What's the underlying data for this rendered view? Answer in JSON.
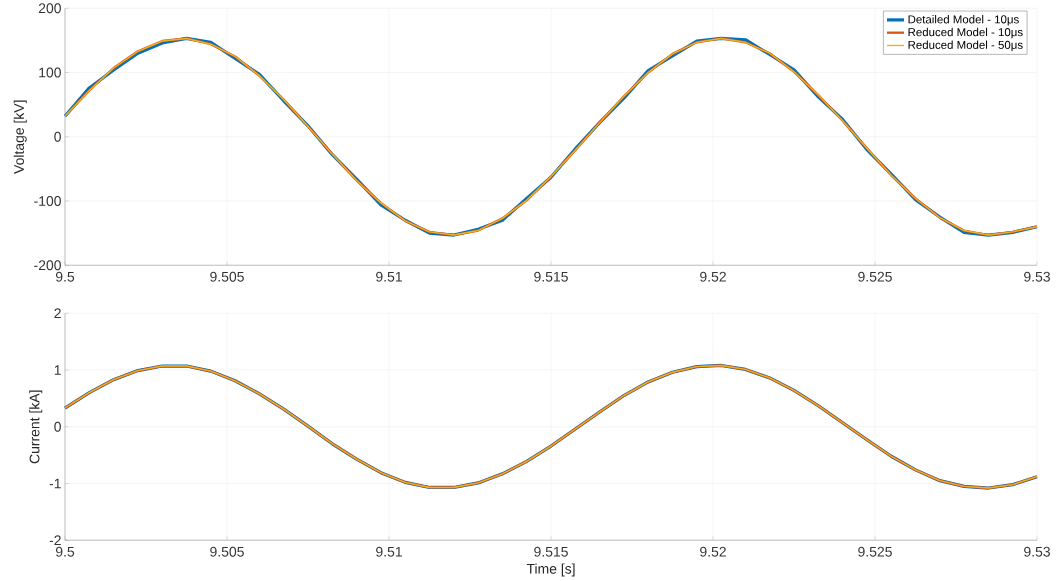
{
  "chart_data": [
    {
      "type": "line",
      "ylabel": "Voltage [kV]",
      "x": [
        9.5,
        9.50075,
        9.5015,
        9.50225,
        9.503,
        9.50375,
        9.5045,
        9.50525,
        9.506,
        9.50675,
        9.5075,
        9.50825,
        9.509,
        9.50975,
        9.5105,
        9.51125,
        9.512,
        9.51275,
        9.5135,
        9.51425,
        9.515,
        9.51575,
        9.5165,
        9.51725,
        9.518,
        9.51875,
        9.5195,
        9.52025,
        9.521,
        9.52175,
        9.5225,
        9.52325,
        9.524,
        9.52475,
        9.5255,
        9.52625,
        9.527,
        9.52775,
        9.5285,
        9.52925,
        9.53
      ],
      "series": [
        {
          "name": "Detailed Model - 10μs",
          "color": "#0072bd",
          "values": [
            32,
            76,
            104,
            130,
            146,
            153,
            147,
            122,
            97,
            56,
            17,
            -28,
            -66,
            -106,
            -130,
            -150,
            -153,
            -144,
            -130,
            -96,
            -63,
            -19,
            22,
            60,
            103,
            126,
            149,
            153,
            151,
            128,
            104,
            62,
            27,
            -20,
            -58,
            -98,
            -125,
            -149,
            -153,
            -149,
            -140
          ]
        },
        {
          "name": "Reduced Model - 10μs",
          "color": "#d95319",
          "values": [
            32,
            72,
            107,
            133,
            149,
            153,
            144,
            125,
            95,
            58,
            16,
            -27,
            -68,
            -103,
            -131,
            -148,
            -153,
            -146,
            -127,
            -99,
            -62,
            -21,
            22,
            63,
            100,
            129,
            147,
            153,
            147,
            130,
            101,
            65,
            25,
            -18,
            -60,
            -96,
            -126,
            -146,
            -153,
            -148,
            -140
          ]
        },
        {
          "name": "Reduced Model - 50μs",
          "color": "#edb120",
          "values": [
            32,
            72,
            107,
            133,
            149,
            153,
            144,
            125,
            95,
            58,
            16,
            -27,
            -68,
            -103,
            -131,
            -148,
            -153,
            -146,
            -127,
            -99,
            -62,
            -21,
            22,
            63,
            100,
            129,
            147,
            153,
            147,
            130,
            101,
            65,
            25,
            -18,
            -60,
            -96,
            -126,
            -146,
            -153,
            -148,
            -140
          ]
        }
      ],
      "xlim": [
        9.5,
        9.53
      ],
      "ylim": [
        -200,
        200
      ],
      "xticks": [
        9.5,
        9.505,
        9.51,
        9.515,
        9.52,
        9.525,
        9.53
      ],
      "yticks": [
        -200,
        -100,
        0,
        100,
        200
      ],
      "grid": true,
      "legend": "top right"
    },
    {
      "type": "line",
      "xlabel": "Time [s]",
      "ylabel": "Current [kA]",
      "x": [
        9.5,
        9.50075,
        9.5015,
        9.50225,
        9.503,
        9.50375,
        9.5045,
        9.50525,
        9.506,
        9.50675,
        9.5075,
        9.50825,
        9.509,
        9.50975,
        9.5105,
        9.51125,
        9.512,
        9.51275,
        9.5135,
        9.51425,
        9.515,
        9.51575,
        9.5165,
        9.51725,
        9.518,
        9.51875,
        9.5195,
        9.52025,
        9.521,
        9.52175,
        9.5225,
        9.52325,
        9.524,
        9.52475,
        9.5255,
        9.52625,
        9.527,
        9.52775,
        9.5285,
        9.52925,
        9.53
      ],
      "series": [
        {
          "color": "#0072bd",
          "values": [
            0.33,
            0.6,
            0.83,
            0.99,
            1.07,
            1.07,
            0.98,
            0.81,
            0.58,
            0.31,
            0.01,
            -0.3,
            -0.57,
            -0.81,
            -0.98,
            -1.07,
            -1.07,
            -0.99,
            -0.83,
            -0.61,
            -0.34,
            -0.04,
            0.26,
            0.55,
            0.79,
            0.96,
            1.06,
            1.08,
            1.01,
            0.86,
            0.64,
            0.37,
            0.07,
            -0.23,
            -0.52,
            -0.76,
            -0.95,
            -1.05,
            -1.08,
            -1.02,
            -0.88
          ]
        },
        {
          "color": "#d95319",
          "values": [
            0.33,
            0.6,
            0.83,
            0.99,
            1.07,
            1.07,
            0.98,
            0.81,
            0.58,
            0.31,
            0.01,
            -0.3,
            -0.57,
            -0.81,
            -0.98,
            -1.07,
            -1.07,
            -0.99,
            -0.83,
            -0.61,
            -0.34,
            -0.04,
            0.26,
            0.55,
            0.79,
            0.96,
            1.06,
            1.08,
            1.01,
            0.86,
            0.64,
            0.37,
            0.07,
            -0.23,
            -0.52,
            -0.76,
            -0.95,
            -1.05,
            -1.08,
            -1.02,
            -0.88
          ]
        },
        {
          "color": "#edb120",
          "values": [
            0.33,
            0.6,
            0.83,
            0.99,
            1.07,
            1.07,
            0.98,
            0.81,
            0.58,
            0.31,
            0.01,
            -0.3,
            -0.57,
            -0.81,
            -0.98,
            -1.07,
            -1.07,
            -0.99,
            -0.83,
            -0.61,
            -0.34,
            -0.04,
            0.26,
            0.55,
            0.79,
            0.96,
            1.06,
            1.08,
            1.01,
            0.86,
            0.64,
            0.37,
            0.07,
            -0.23,
            -0.52,
            -0.76,
            -0.95,
            -1.05,
            -1.08,
            -1.02,
            -0.88
          ]
        }
      ],
      "xlim": [
        9.5,
        9.53
      ],
      "ylim": [
        -2,
        2
      ],
      "xticks": [
        9.5,
        9.505,
        9.51,
        9.515,
        9.52,
        9.525,
        9.53
      ],
      "yticks": [
        -2,
        -1,
        0,
        1,
        2
      ],
      "grid": true
    }
  ]
}
